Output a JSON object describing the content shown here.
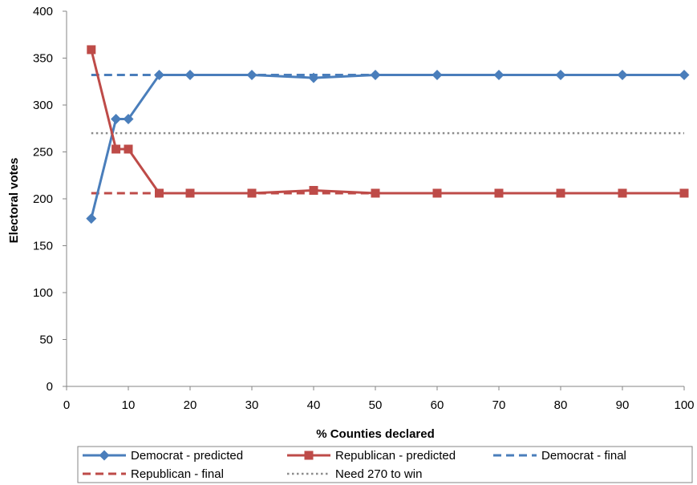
{
  "chart_data": {
    "type": "line",
    "title": "",
    "xlabel": "% Counties declared",
    "ylabel": "Electoral votes",
    "xlim": [
      0,
      100
    ],
    "ylim": [
      0,
      400
    ],
    "xticks": [
      0,
      10,
      20,
      30,
      40,
      50,
      60,
      70,
      80,
      90,
      100
    ],
    "yticks": [
      0,
      50,
      100,
      150,
      200,
      250,
      300,
      350,
      400
    ],
    "grid": false,
    "legend_position": "bottom",
    "x": [
      4,
      8,
      10,
      15,
      20,
      30,
      40,
      50,
      60,
      70,
      80,
      90,
      100
    ],
    "series": [
      {
        "name": "Democrat - predicted",
        "color": "#4a7ebb",
        "style": "solid",
        "marker": "diamond",
        "values": [
          179,
          285,
          285,
          332,
          332,
          332,
          329,
          332,
          332,
          332,
          332,
          332,
          332
        ]
      },
      {
        "name": "Republican - predicted",
        "color": "#be4b48",
        "style": "solid",
        "marker": "square",
        "values": [
          359,
          253,
          253,
          206,
          206,
          206,
          209,
          206,
          206,
          206,
          206,
          206,
          206
        ]
      },
      {
        "name": "Democrat - final",
        "color": "#4a7ebb",
        "style": "dashed",
        "marker": "none",
        "constant": 332
      },
      {
        "name": "Republican - final",
        "color": "#be4b48",
        "style": "dashed",
        "marker": "none",
        "constant": 206
      },
      {
        "name": "Need 270 to win",
        "color": "#8c8c8c",
        "style": "dotted",
        "marker": "none",
        "constant": 270
      }
    ]
  }
}
